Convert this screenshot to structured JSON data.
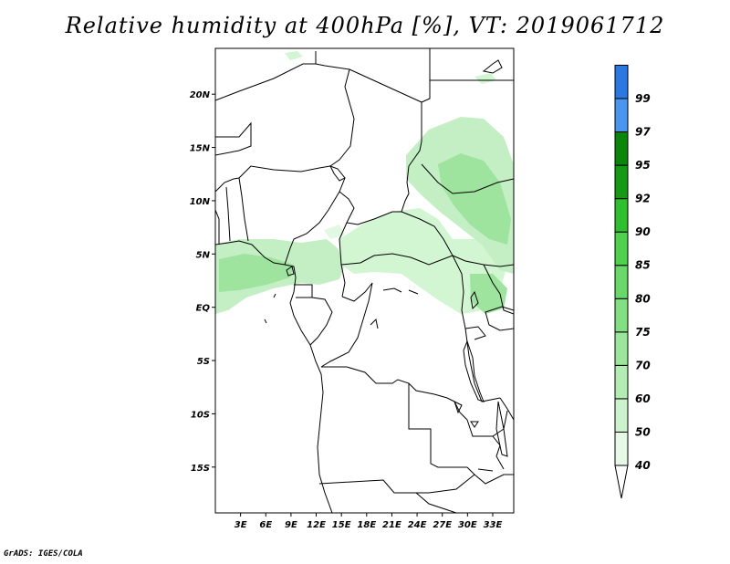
{
  "title": "Relative humidity at 400hPa [%], VT: 2019061712",
  "credit": "GrADS: IGES/COLA",
  "map": {
    "lat_ticks": [
      "20N",
      "15N",
      "10N",
      "5N",
      "EQ",
      "5S",
      "10S",
      "15S"
    ],
    "lon_ticks": [
      "3E",
      "6E",
      "9E",
      "12E",
      "15E",
      "18E",
      "21E",
      "24E",
      "27E",
      "30E",
      "33E"
    ]
  },
  "colorbar": {
    "levels": [
      "40",
      "50",
      "60",
      "70",
      "75",
      "80",
      "85",
      "90",
      "92",
      "95",
      "97",
      "99"
    ],
    "colors": [
      "#e6f9e6",
      "#cdf3cd",
      "#b4edb4",
      "#9be69b",
      "#82df82",
      "#69d869",
      "#4fd04f",
      "#2fbf2f",
      "#169a16",
      "#0a860a",
      "#4a96ee",
      "#2a78e0",
      "#1a5ed0"
    ]
  },
  "chart_data": {
    "type": "heatmap",
    "title": "Relative humidity at 400hPa [%], VT: 2019061712",
    "variable": "Relative humidity at 400hPa",
    "units": "%",
    "valid_time": "2019061712",
    "contour_levels": [
      40,
      50,
      60,
      70,
      75,
      80,
      85,
      90,
      92,
      95,
      97,
      99
    ],
    "lon_range": [
      "0E",
      "35E"
    ],
    "lat_range": [
      "19S",
      "24N"
    ],
    "x_tick_labels": [
      "3E",
      "6E",
      "9E",
      "12E",
      "15E",
      "18E",
      "21E",
      "24E",
      "27E",
      "30E",
      "33E"
    ],
    "y_tick_labels": [
      "20N",
      "15N",
      "10N",
      "5N",
      "EQ",
      "5S",
      "10S",
      "15S"
    ]
  }
}
